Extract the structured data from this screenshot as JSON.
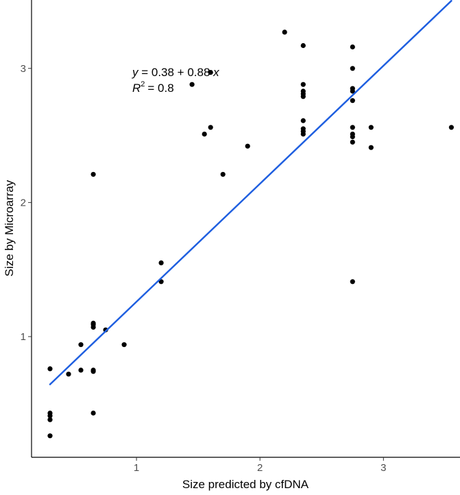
{
  "chart_data": {
    "type": "scatter",
    "xlabel": "Size predicted by cfDNA",
    "ylabel": "Size by Microarray",
    "xlim": [
      0.15,
      3.62
    ],
    "ylim": [
      0.1,
      3.51
    ],
    "x_ticks": [
      1,
      2,
      3
    ],
    "y_ticks": [
      1,
      2,
      3
    ],
    "grid": false,
    "legend": "none",
    "points": [
      {
        "x": 0.3,
        "y": 0.76
      },
      {
        "x": 0.3,
        "y": 0.43
      },
      {
        "x": 0.3,
        "y": 0.41
      },
      {
        "x": 0.3,
        "y": 0.38
      },
      {
        "x": 0.3,
        "y": 0.26
      },
      {
        "x": 0.45,
        "y": 0.72
      },
      {
        "x": 0.55,
        "y": 0.75
      },
      {
        "x": 0.55,
        "y": 0.94
      },
      {
        "x": 0.65,
        "y": 0.75
      },
      {
        "x": 0.65,
        "y": 0.74
      },
      {
        "x": 0.65,
        "y": 0.43
      },
      {
        "x": 0.65,
        "y": 1.1
      },
      {
        "x": 0.65,
        "y": 1.09
      },
      {
        "x": 0.65,
        "y": 1.07
      },
      {
        "x": 0.65,
        "y": 2.21
      },
      {
        "x": 0.75,
        "y": 1.05
      },
      {
        "x": 0.9,
        "y": 0.94
      },
      {
        "x": 1.2,
        "y": 1.55
      },
      {
        "x": 1.2,
        "y": 1.41
      },
      {
        "x": 1.45,
        "y": 2.88
      },
      {
        "x": 1.55,
        "y": 2.51
      },
      {
        "x": 1.6,
        "y": 2.97
      },
      {
        "x": 1.6,
        "y": 2.56
      },
      {
        "x": 1.7,
        "y": 2.21
      },
      {
        "x": 1.9,
        "y": 2.42
      },
      {
        "x": 2.2,
        "y": 3.27
      },
      {
        "x": 2.35,
        "y": 3.17
      },
      {
        "x": 2.35,
        "y": 2.88
      },
      {
        "x": 2.35,
        "y": 2.83
      },
      {
        "x": 2.35,
        "y": 2.81
      },
      {
        "x": 2.35,
        "y": 2.79
      },
      {
        "x": 2.35,
        "y": 2.61
      },
      {
        "x": 2.35,
        "y": 2.55
      },
      {
        "x": 2.35,
        "y": 2.53
      },
      {
        "x": 2.35,
        "y": 2.51
      },
      {
        "x": 2.75,
        "y": 3.16
      },
      {
        "x": 2.75,
        "y": 3.0
      },
      {
        "x": 2.75,
        "y": 2.85
      },
      {
        "x": 2.75,
        "y": 2.83
      },
      {
        "x": 2.75,
        "y": 2.76
      },
      {
        "x": 2.75,
        "y": 2.56
      },
      {
        "x": 2.75,
        "y": 2.51
      },
      {
        "x": 2.75,
        "y": 2.49
      },
      {
        "x": 2.75,
        "y": 2.45
      },
      {
        "x": 2.75,
        "y": 1.41
      },
      {
        "x": 2.9,
        "y": 2.56
      },
      {
        "x": 2.9,
        "y": 2.41
      },
      {
        "x": 3.55,
        "y": 2.56
      }
    ],
    "fit_line": {
      "intercept": 0.38,
      "slope": 0.88,
      "x_range": [
        0.3,
        3.55
      ],
      "color": "#1f5fe0"
    },
    "annotation": {
      "equation": "y = 0.38 + 0.88 x",
      "r2_label": "R",
      "r2_superscript": "2",
      "r2_value": "= 0.8"
    },
    "point_color": "#000000"
  }
}
